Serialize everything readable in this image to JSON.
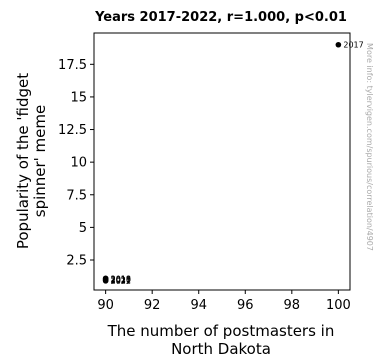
{
  "chart_data": {
    "type": "scatter",
    "title": "Years 2017-2022, r=1.000, p<0.01",
    "xlabel_lines": [
      "The number of postmasters in",
      "North Dakota"
    ],
    "ylabel_lines": [
      "Popularity of the 'fidget",
      "spinner' meme"
    ],
    "xlim": [
      89.5,
      100.5
    ],
    "ylim": [
      0.2,
      19.9
    ],
    "x_ticks": [
      90,
      92,
      94,
      96,
      98,
      100
    ],
    "y_ticks": [
      2.5,
      5,
      7.5,
      10,
      12.5,
      15,
      17.5
    ],
    "y_tick_labels": [
      "2.5",
      "5",
      "7.5",
      "10",
      "12.5",
      "15",
      "17.5"
    ],
    "points": [
      {
        "label": "2017",
        "x": 100,
        "y": 19
      },
      {
        "label": "2018",
        "x": 90,
        "y": 1.1
      },
      {
        "label": "2019",
        "x": 90,
        "y": 1.05
      },
      {
        "label": "2020",
        "x": 90,
        "y": 1.0
      },
      {
        "label": "2021",
        "x": 90,
        "y": 0.95
      },
      {
        "label": "2022",
        "x": 90,
        "y": 0.9
      }
    ],
    "point_color": "#000000",
    "grid": false,
    "watermark": "More info: tylervigen.com/spurious/correlation/4907"
  }
}
